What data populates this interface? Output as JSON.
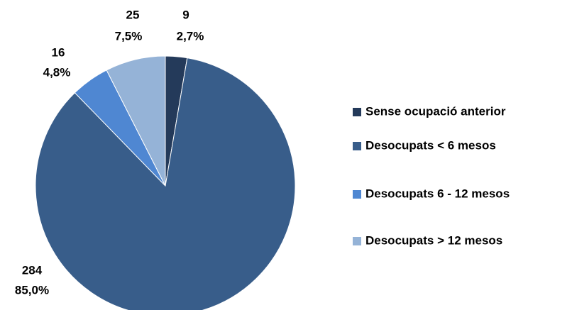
{
  "chart_data": {
    "type": "pie",
    "categories": [
      "Sense ocupació anterior",
      "Desocupats < 6 mesos",
      "Desocupats 6 - 12 mesos",
      "Desocupats > 12 mesos"
    ],
    "values": [
      9,
      284,
      16,
      25
    ],
    "percent_labels": [
      "2,7%",
      "85,0%",
      "4,8%",
      "7,5%"
    ],
    "colors": [
      "#243a5a",
      "#385d8a",
      "#4f87d2",
      "#95b3d7"
    ],
    "legend": "right"
  }
}
